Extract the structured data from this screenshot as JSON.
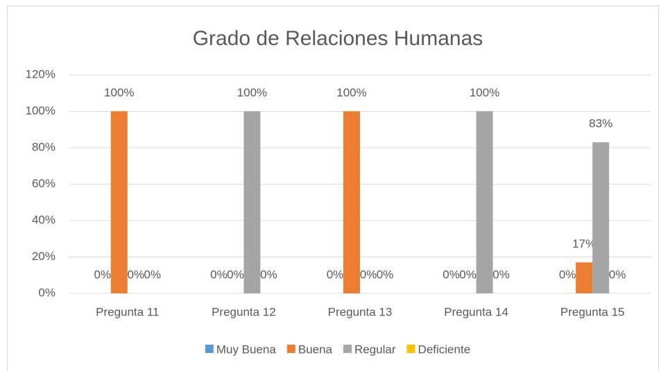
{
  "chart_data": {
    "type": "bar",
    "title": "Grado de Relaciones Humanas",
    "categories": [
      "Pregunta 11",
      "Pregunta 12",
      "Pregunta 13",
      "Pregunta 14",
      "Pregunta 15"
    ],
    "series": [
      {
        "name": "Muy Buena",
        "color": "#5b9bd5",
        "values": [
          0,
          0,
          0,
          0,
          0
        ],
        "value_labels": [
          "0%",
          "0%",
          "0%",
          "0%",
          "0%"
        ]
      },
      {
        "name": "Buena",
        "color": "#ed7d31",
        "values": [
          100,
          0,
          100,
          0,
          17
        ],
        "value_labels": [
          "100%",
          "0%",
          "100%",
          "0%",
          "17%"
        ]
      },
      {
        "name": "Regular",
        "color": "#a5a5a5",
        "values": [
          0,
          100,
          0,
          100,
          83
        ],
        "value_labels": [
          "0%",
          "100%",
          "0%",
          "100%",
          "83%"
        ]
      },
      {
        "name": "Deficiente",
        "color": "#ffc000",
        "values": [
          0,
          0,
          0,
          0,
          0
        ],
        "value_labels": [
          "0%",
          "0%",
          "0%",
          "0%",
          "0%"
        ]
      }
    ],
    "ylim": [
      0,
      120
    ],
    "yticks": [
      {
        "value": 0,
        "label": "0%"
      },
      {
        "value": 20,
        "label": "20%"
      },
      {
        "value": 40,
        "label": "40%"
      },
      {
        "value": 60,
        "label": "60%"
      },
      {
        "value": 80,
        "label": "80%"
      },
      {
        "value": 100,
        "label": "100%"
      },
      {
        "value": 120,
        "label": "120%"
      }
    ],
    "grid": true,
    "legend": "bottom"
  }
}
